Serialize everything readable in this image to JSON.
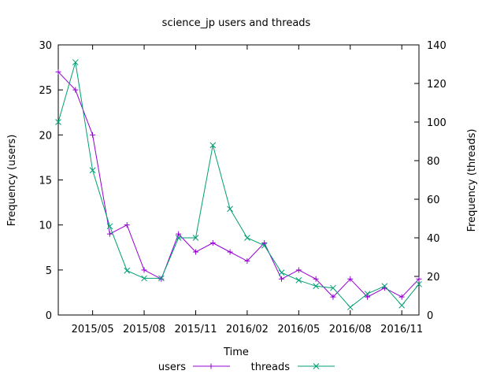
{
  "chart_data": {
    "type": "line",
    "title": "science_jp users and threads",
    "xlabel": "Time",
    "ylabel": "Frequency (users)",
    "y2label": "Frequency (threads)",
    "x_dates": [
      "2015-03",
      "2015-04",
      "2015-05",
      "2015-06",
      "2015-07",
      "2015-08",
      "2015-09",
      "2015-10",
      "2015-11",
      "2015-12",
      "2016-01",
      "2016-02",
      "2016-03",
      "2016-04",
      "2016-05",
      "2016-06",
      "2016-07",
      "2016-08",
      "2016-09",
      "2016-10",
      "2016-11",
      "2016-12"
    ],
    "x_ticks": [
      "2015/05",
      "2015/08",
      "2015/11",
      "2016/02",
      "2016/05",
      "2016/08",
      "2016/11"
    ],
    "ylim": [
      0,
      30
    ],
    "y_ticks": [
      "0",
      "5",
      "10",
      "15",
      "20",
      "25",
      "30"
    ],
    "y2lim": [
      0,
      140
    ],
    "y2_ticks": [
      "0",
      "20",
      "40",
      "60",
      "80",
      "100",
      "120",
      "140"
    ],
    "legend_position": "bottom",
    "grid": false,
    "series": [
      {
        "name": "users",
        "axis": "left",
        "color": "#9400d3",
        "marker": "+",
        "values": [
          27,
          25,
          20,
          9,
          10,
          5,
          4,
          9,
          7,
          8,
          7,
          6,
          8,
          4,
          5,
          4,
          2,
          4,
          2,
          3,
          2,
          4
        ]
      },
      {
        "name": "threads",
        "axis": "right",
        "color": "#009e73",
        "marker": "x",
        "values": [
          100,
          131,
          75,
          46,
          23,
          19,
          19,
          40,
          40,
          88,
          55,
          40,
          36,
          22,
          18,
          15,
          14,
          4,
          11,
          15,
          5,
          16
        ]
      }
    ]
  }
}
